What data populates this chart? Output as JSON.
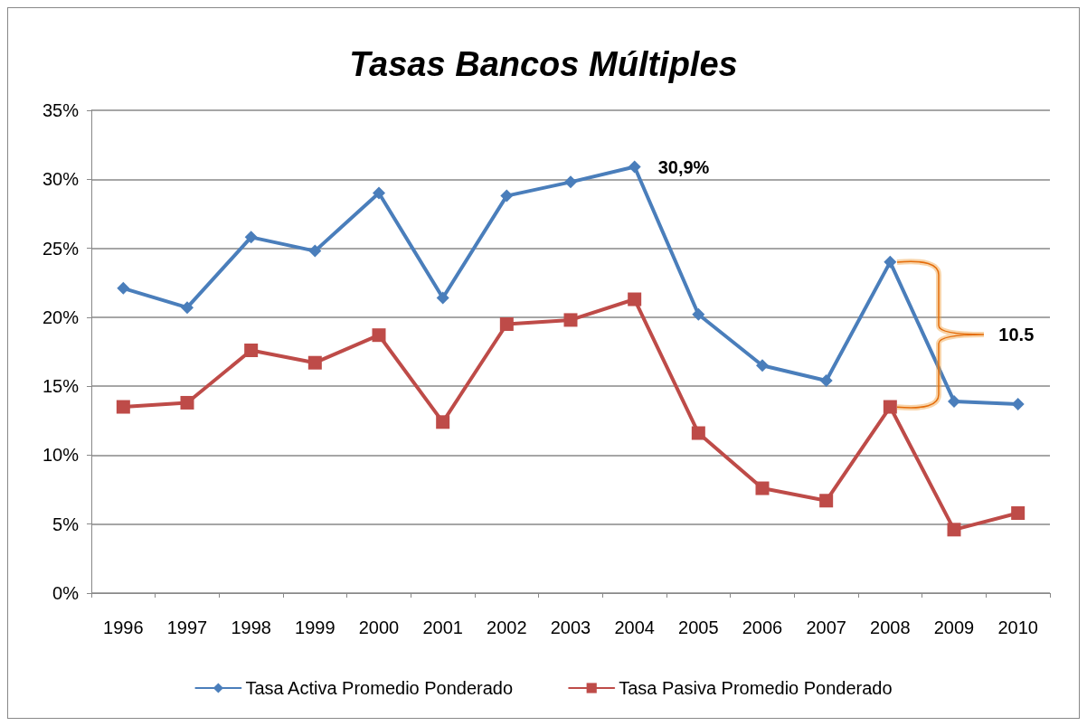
{
  "chart_data": {
    "type": "line",
    "title": "Tasas Bancos Múltiples",
    "categories": [
      "1996",
      "1997",
      "1998",
      "1999",
      "2000",
      "2001",
      "2002",
      "2003",
      "2004",
      "2005",
      "2006",
      "2007",
      "2008",
      "2009",
      "2010"
    ],
    "series": [
      {
        "name": "Tasa Activa Promedio Ponderado",
        "color": "#4a7ebb",
        "marker": "diamond",
        "values": [
          22.1,
          20.7,
          25.8,
          24.8,
          29.0,
          21.4,
          28.8,
          29.8,
          30.9,
          20.2,
          16.5,
          15.4,
          24.0,
          13.9,
          13.7
        ]
      },
      {
        "name": "Tasa Pasiva Promedio Ponderado",
        "color": "#be4b48",
        "marker": "square",
        "values": [
          13.5,
          13.8,
          17.6,
          16.7,
          18.7,
          12.4,
          19.5,
          19.8,
          21.3,
          11.6,
          7.6,
          6.7,
          13.5,
          4.6,
          5.8
        ]
      }
    ],
    "ylim": [
      0,
      35
    ],
    "yticks": [
      {
        "value": 0,
        "label": "0%"
      },
      {
        "value": 5,
        "label": "5%"
      },
      {
        "value": 10,
        "label": "10%"
      },
      {
        "value": 15,
        "label": "15%"
      },
      {
        "value": 20,
        "label": "20%"
      },
      {
        "value": 25,
        "label": "25%"
      },
      {
        "value": 30,
        "label": "30%"
      },
      {
        "value": 35,
        "label": "35%"
      }
    ],
    "grid": "y",
    "legend": "bottom",
    "line_style": "solid",
    "annotations": [
      {
        "text": "30,9%",
        "x": "2004",
        "y": 30.9
      },
      "10.5"
    ]
  }
}
